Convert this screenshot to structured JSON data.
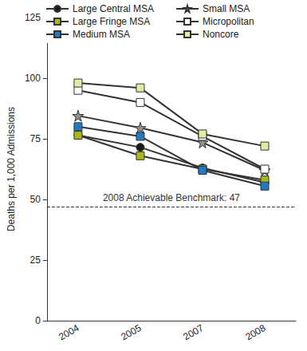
{
  "chart_data": {
    "type": "line",
    "y_label": "Deaths per 1,000 Admissions",
    "categories": [
      "2004",
      "2005",
      "2007",
      "2008"
    ],
    "series": [
      {
        "name": "Large Central MSA",
        "color": "#1a1a1a",
        "marker": "circle",
        "values": [
          76.5,
          71.5,
          63,
          57
        ]
      },
      {
        "name": "Large Fringe MSA",
        "color": "#a8b818",
        "marker": "square",
        "values": [
          76.5,
          68,
          62.5,
          58
        ]
      },
      {
        "name": "Medium MSA",
        "color": "#1f7cc4",
        "marker": "square",
        "values": [
          80,
          76,
          62,
          55.5
        ]
      },
      {
        "name": "Small MSA",
        "color": "#909090",
        "marker": "star",
        "values": [
          84.5,
          79.5,
          73.5,
          62
        ]
      },
      {
        "name": "Micropolitan",
        "color": "#ffffff",
        "marker": "square",
        "values": [
          95,
          90,
          76,
          62.5
        ]
      },
      {
        "name": "Noncore",
        "color": "#e4eba4",
        "marker": "square",
        "values": [
          98,
          96,
          77,
          72
        ]
      }
    ],
    "annotations": [
      {
        "text": "2008 Achievable Benchmark: 47",
        "y": 47
      }
    ],
    "ylim": [
      0,
      125
    ],
    "yticks": [
      0,
      25,
      50,
      75,
      100,
      125
    ],
    "grid": false,
    "legend": "top"
  }
}
